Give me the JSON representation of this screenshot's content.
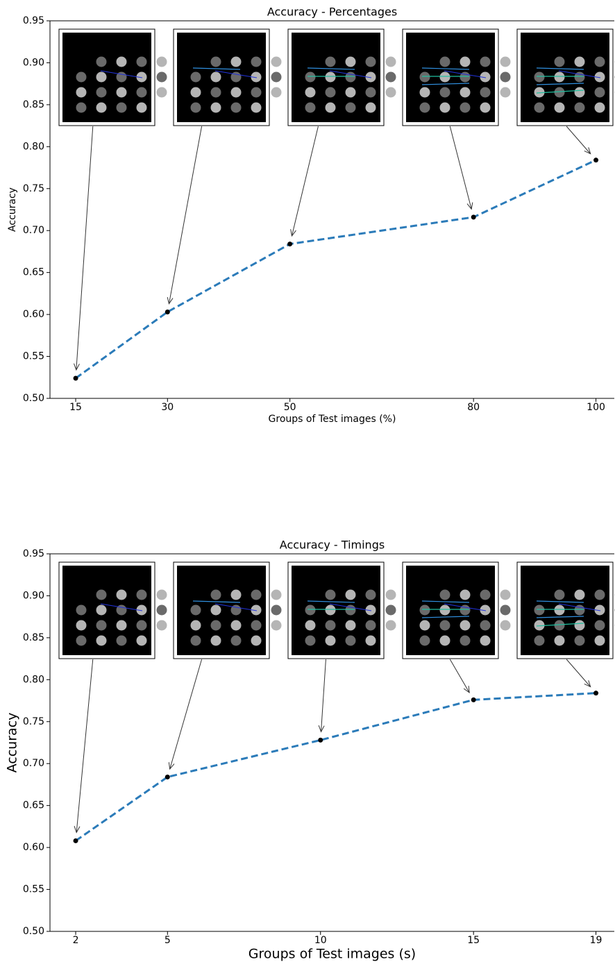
{
  "chart_data": [
    {
      "type": "line",
      "title": "Accuracy - Percentages",
      "x_label": "Groups of Test images (%)",
      "y_label": "Accuracy",
      "x": [
        15,
        30,
        50,
        80,
        100
      ],
      "series": [
        {
          "color": "#2b7bb9",
          "values": [
            0.524,
            0.603,
            0.684,
            0.716,
            0.784
          ]
        }
      ],
      "xlim": [
        10.8,
        103
      ],
      "xticks": [
        15,
        30,
        50,
        80,
        100
      ],
      "ylim": [
        0.5,
        0.95
      ],
      "yticks": [
        {
          "value": 0.5,
          "label": "0.50"
        },
        0.55,
        {
          "value": 0.6,
          "label": "0.60"
        },
        0.65,
        {
          "value": 0.7,
          "label": "0.70"
        },
        0.75,
        {
          "value": 0.8,
          "label": "0.80"
        },
        0.85,
        {
          "value": 0.9,
          "label": "0.90"
        },
        0.95
      ]
    },
    {
      "type": "line",
      "title": "Accuracy - Timings",
      "x_label": "Groups of Test images (s)",
      "y_label": "Accuracy",
      "x": [
        2,
        5,
        10,
        15,
        19
      ],
      "series": [
        {
          "color": "#2b7bb9",
          "values": [
            0.608,
            0.684,
            0.728,
            0.776,
            0.784
          ]
        }
      ],
      "xlim": [
        1.16,
        19.6
      ],
      "xticks": [
        2,
        5,
        10,
        15,
        19
      ],
      "ylim": [
        0.5,
        0.95
      ],
      "yticks": [
        {
          "value": 0.5,
          "label": "0.50"
        },
        0.55,
        {
          "value": 0.6,
          "label": "0.60"
        },
        0.65,
        {
          "value": 0.7,
          "label": "0.70"
        },
        0.75,
        {
          "value": 0.8,
          "label": "0.80"
        },
        0.85,
        {
          "value": 0.9,
          "label": "0.90"
        },
        0.95
      ]
    }
  ]
}
